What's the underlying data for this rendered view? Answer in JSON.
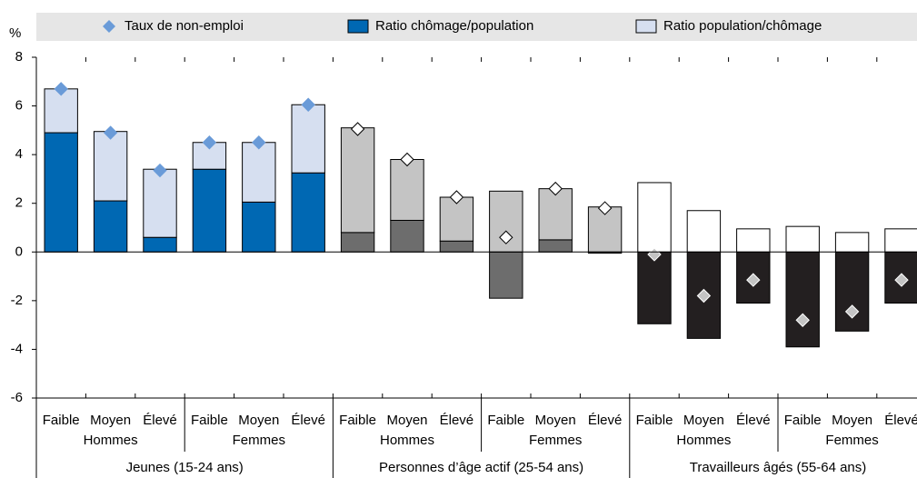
{
  "chart_data": {
    "type": "bar",
    "y_unit": "%",
    "categories": [
      "Faible",
      "Moyen",
      "Élevé",
      "Faible",
      "Moyen",
      "Élevé",
      "Faible",
      "Moyen",
      "Élevé",
      "Faible",
      "Moyen",
      "Élevé",
      "Faible",
      "Moyen",
      "Élevé",
      "Faible",
      "Moyen",
      "Élevé"
    ],
    "subgroups": [
      "Hommes",
      "Femmes",
      "Hommes",
      "Femmes",
      "Hommes",
      "Femmes"
    ],
    "groups": [
      "Jeunes (15-24 ans)",
      "Personnes d’âge actif (25-54 ans)",
      "Travailleurs âgés (55-64 ans)"
    ],
    "series": [
      {
        "name": "Taux de non-emploi",
        "color": "#6a9bd8",
        "kind": "marker",
        "values": [
          6.7,
          4.9,
          3.35,
          4.5,
          4.5,
          6.05,
          5.05,
          3.8,
          2.25,
          0.6,
          2.6,
          1.8,
          -0.1,
          -1.8,
          -1.15,
          -2.8,
          -2.45,
          -1.15
        ]
      },
      {
        "name": "Ratio chômage/population",
        "color": "#0068b3",
        "kind": "bar",
        "values": [
          4.9,
          2.1,
          0.6,
          3.4,
          2.05,
          3.25,
          0.8,
          1.3,
          0.45,
          -1.9,
          0.5,
          -0.05,
          -2.95,
          -3.55,
          -2.1,
          -3.9,
          -3.25,
          -2.1
        ]
      },
      {
        "name": "Ratio population/chômage",
        "color": "#d6dff0",
        "kind": "bar",
        "values": [
          1.8,
          2.85,
          2.8,
          1.1,
          2.45,
          2.8,
          4.3,
          2.5,
          1.8,
          2.5,
          2.1,
          1.85,
          2.85,
          1.7,
          0.95,
          1.05,
          0.8,
          0.95
        ]
      }
    ],
    "group_colors": [
      {
        "dark": "#0068b3",
        "light": "#d6dff0",
        "marker": "#6a9bd8",
        "marker_stroke": "#6a9bd8"
      },
      {
        "dark": "#6d6d6d",
        "light": "#c4c4c4",
        "marker": "#ffffff",
        "marker_stroke": "#000000"
      },
      {
        "dark": "#231f20",
        "light": "#ffffff",
        "marker": "#c4c4c4",
        "marker_stroke": "#ffffff"
      }
    ],
    "ylim": [
      -6,
      8
    ],
    "yticks": [
      -6,
      -4,
      -2,
      0,
      2,
      4,
      6,
      8
    ]
  }
}
